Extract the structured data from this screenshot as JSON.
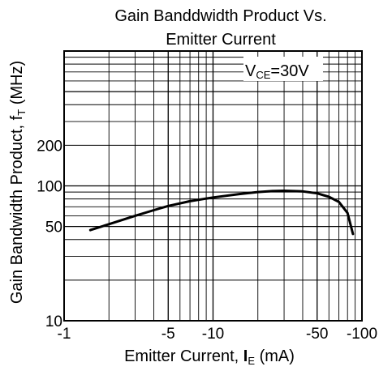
{
  "chart_data": {
    "type": "line",
    "title": [
      "Gain Banddwidth Product Vs.",
      "Emitter Current"
    ],
    "xlabel": {
      "text": "Emitter Current, ",
      "symbol": "I",
      "subscript": "E",
      "unit": " (mA)"
    },
    "ylabel": {
      "text": "Gain Bandwidth Product, ",
      "symbol": "f",
      "subscript": "T",
      "unit": " (MHz)"
    },
    "x_scale": "log",
    "y_scale": "log",
    "xlim": [
      -1,
      -100
    ],
    "ylim": [
      10,
      1000
    ],
    "x_ticks": [
      {
        "value": -1,
        "label": "-1"
      },
      {
        "value": -5,
        "label": "-5"
      },
      {
        "value": -10,
        "label": "-10"
      },
      {
        "value": -50,
        "label": "-50"
      },
      {
        "value": -100,
        "label": "-100"
      }
    ],
    "y_ticks": [
      {
        "value": 10,
        "label": "10"
      },
      {
        "value": 50,
        "label": "50"
      },
      {
        "value": 100,
        "label": "100"
      },
      {
        "value": 200,
        "label": "200"
      }
    ],
    "grid": true,
    "annotation": {
      "prefix": "V",
      "subscript": "CE",
      "text": "=30V"
    },
    "series": [
      {
        "x": [
          -1.5,
          -2,
          -3,
          -4,
          -5,
          -7,
          -10,
          -15,
          -20,
          -25,
          -30,
          -40,
          -50,
          -60,
          -70,
          -80,
          -87
        ],
        "y": [
          47,
          52,
          60,
          66,
          71,
          77,
          82,
          87,
          90,
          91.5,
          92,
          91,
          88,
          83,
          76,
          63,
          44
        ]
      }
    ]
  },
  "colors": {
    "line": "#000000",
    "grid": "#000000",
    "background": "#ffffff"
  }
}
